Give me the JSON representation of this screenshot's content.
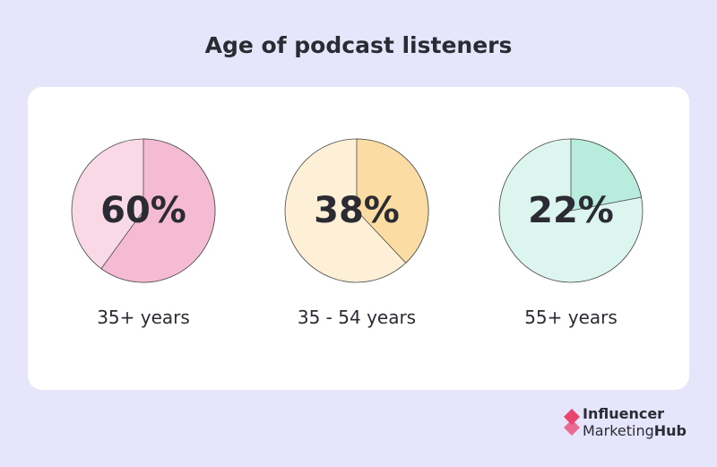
{
  "title": "Age of podcast listeners",
  "chart_data": [
    {
      "type": "pie",
      "label": "35+ years",
      "value": 60,
      "value_label": "60%",
      "colors": {
        "slice": "#f4bbd3",
        "rest": "#f9d9e6"
      }
    },
    {
      "type": "pie",
      "label": "35 - 54 years",
      "value": 38,
      "value_label": "38%",
      "colors": {
        "slice": "#fbdda3",
        "rest": "#fdf0d6"
      }
    },
    {
      "type": "pie",
      "label": "55+ years",
      "value": 22,
      "value_label": "22%",
      "colors": {
        "slice": "#b8ecdc",
        "rest": "#dcf5ee"
      }
    }
  ],
  "logo": {
    "line1": "Influencer",
    "line2a": "Marketing",
    "line2b": "Hub",
    "mark_color": "#e8446c",
    "icon": "influencer-marketing-hub-logo-icon"
  }
}
